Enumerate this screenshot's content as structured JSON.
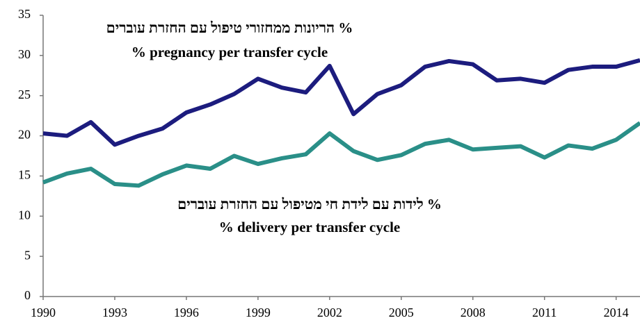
{
  "chart_data": {
    "type": "line",
    "x": [
      1990,
      1991,
      1992,
      1993,
      1994,
      1995,
      1996,
      1997,
      1998,
      1999,
      2000,
      2001,
      2002,
      2003,
      2004,
      2005,
      2006,
      2007,
      2008,
      2009,
      2010,
      2011,
      2012,
      2013,
      2014,
      2015
    ],
    "series": [
      {
        "name": "% pregnancy per transfer cycle",
        "label_he": "% הריונות ממחזורי טיפול עם החזרת עוברים",
        "color": "#1c1c7e",
        "values": [
          20.3,
          20.0,
          21.7,
          18.9,
          20.0,
          20.9,
          22.9,
          23.9,
          25.2,
          27.1,
          26.0,
          25.4,
          28.7,
          22.7,
          25.2,
          26.3,
          28.6,
          29.3,
          28.9,
          26.9,
          27.1,
          26.6,
          28.2,
          28.6,
          28.6,
          29.4
        ]
      },
      {
        "name": "% delivery per transfer cycle",
        "label_he": "% לידות עם לידת חי מטיפול עם החזרת עוברים",
        "color": "#2a8f88",
        "values": [
          14.2,
          15.3,
          15.9,
          14.0,
          13.8,
          15.2,
          16.3,
          15.9,
          17.5,
          16.5,
          17.2,
          17.7,
          20.3,
          18.1,
          17.0,
          17.6,
          19.0,
          19.5,
          18.3,
          18.5,
          18.7,
          17.3,
          18.8,
          18.4,
          19.5,
          21.6
        ]
      }
    ],
    "xlim": [
      1990,
      2015
    ],
    "xticks": [
      1990,
      1993,
      1996,
      1999,
      2002,
      2005,
      2008,
      2011,
      2014
    ],
    "ylim": [
      0,
      35
    ],
    "yticks": [
      0,
      5,
      10,
      15,
      20,
      25,
      30,
      35
    ]
  }
}
